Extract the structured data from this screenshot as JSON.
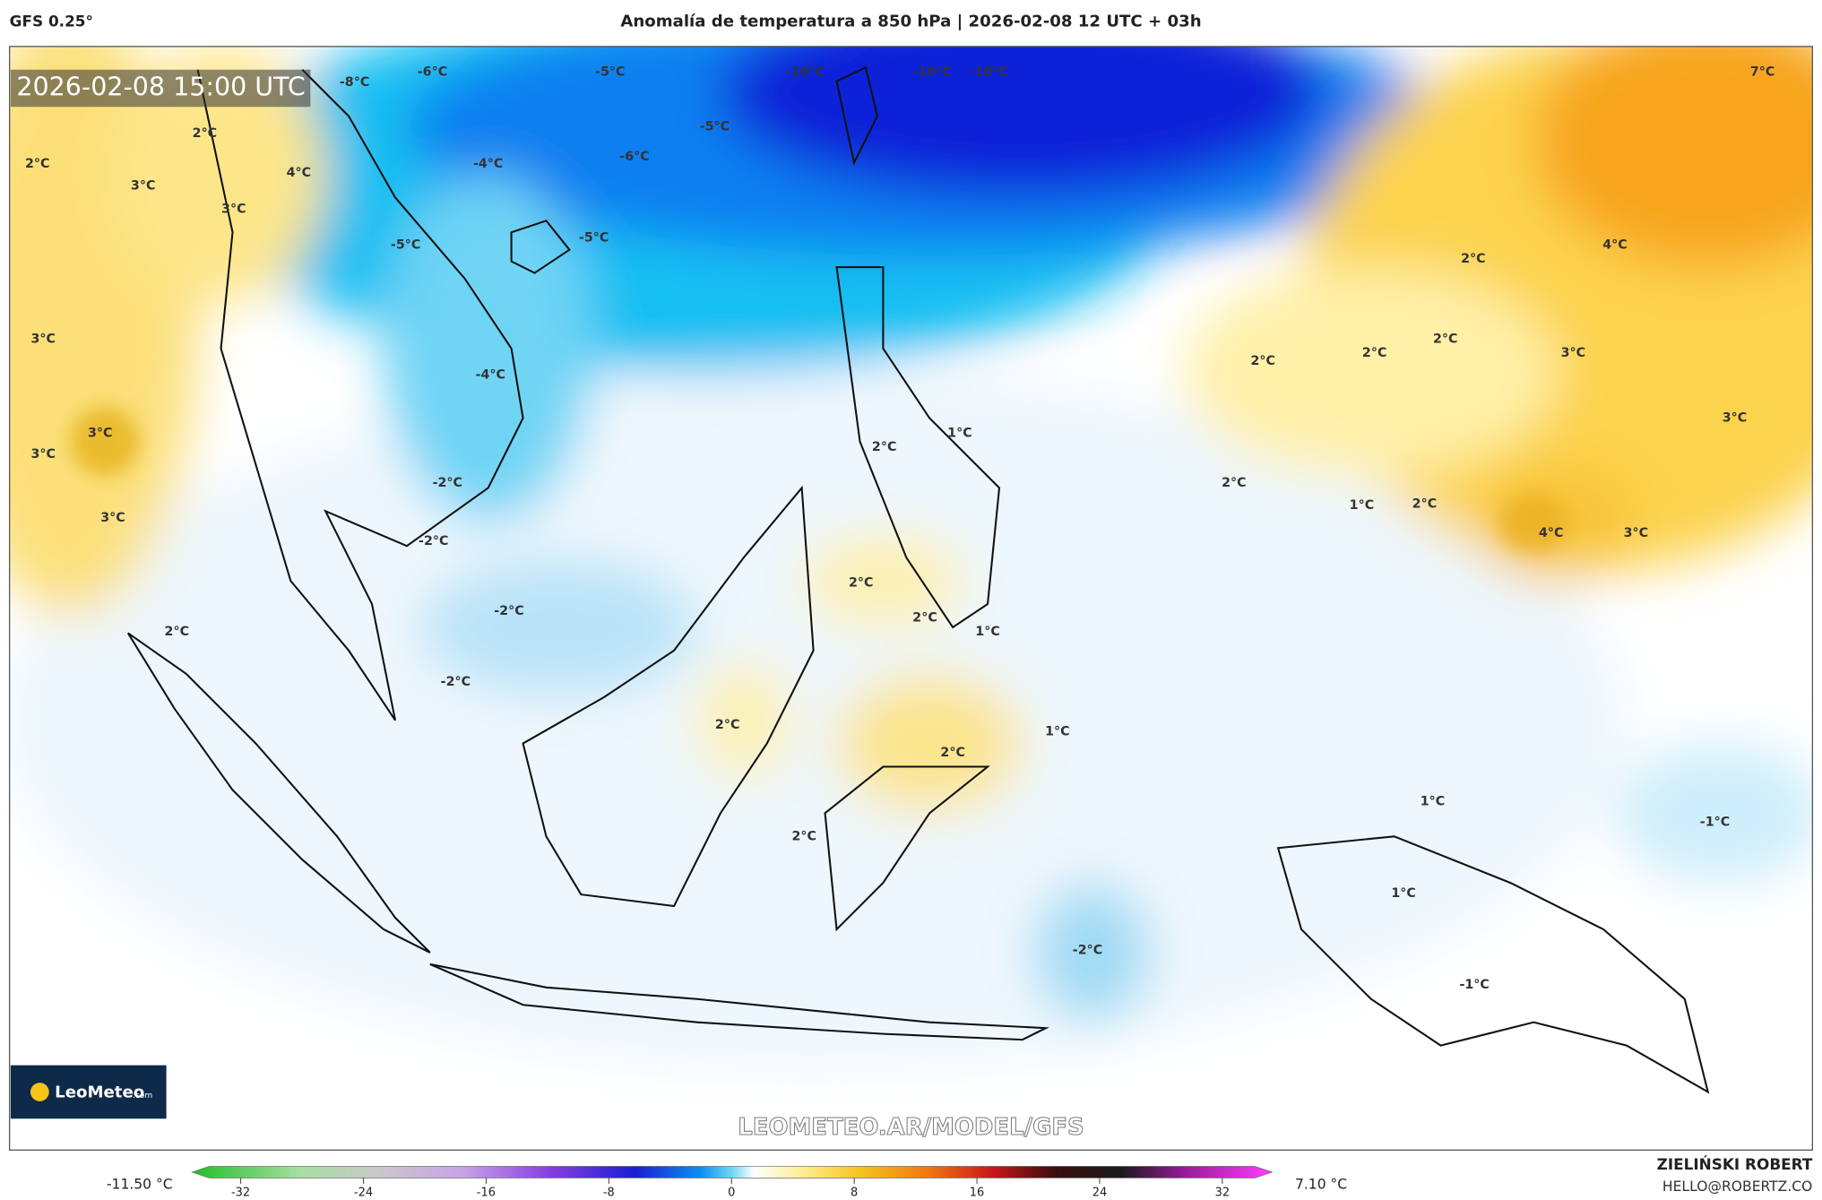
{
  "header": {
    "model": "GFS 0.25°",
    "title": "Anomalía de temperatura a 850 hPa | 2026-02-08 12 UTC + 03h"
  },
  "timestamp": "2026-02-08 15:00 UTC",
  "watermark": "LEOMETEO.AR/MODEL/GFS",
  "logo": {
    "name": "LeoMeteo",
    "suffix": ".com"
  },
  "labels": [
    "-8°C",
    "-6°C",
    "-5°C",
    "-10°C",
    "-10°C",
    "-10°C",
    "7°C",
    "2°C",
    "2°C",
    "4°C",
    "3°C",
    "3°C",
    "-4°C",
    "-6°C",
    "-5°C",
    "-5°C",
    "-5°C",
    "2°C",
    "4°C",
    "3°C",
    "2°C",
    "2°C",
    "2°C",
    "3°C",
    "3°C",
    "3°C",
    "3°C",
    "-4°C",
    "1°C",
    "2°C",
    "2°C",
    "1°C",
    "2°C",
    "3°C",
    "4°C",
    "3°C",
    "-2°C",
    "-2°C",
    "2°C",
    "2°C",
    "1°C",
    "2°C",
    "-2°C",
    "-2°C",
    "2°C",
    "2°C",
    "1°C",
    "1°C",
    "-1°C",
    "2°C",
    "1°C",
    "-2°C",
    "-1°C"
  ],
  "colorbar": {
    "min_label": "-11.50 °C",
    "max_label": "7.10 °C",
    "ticks": [
      -32,
      -24,
      -16,
      -8,
      0,
      8,
      16,
      24,
      32
    ]
  },
  "credit": {
    "author": "ZIELIŃSKI ROBERT",
    "email": "HELLO@ROBERTZ.CO"
  }
}
